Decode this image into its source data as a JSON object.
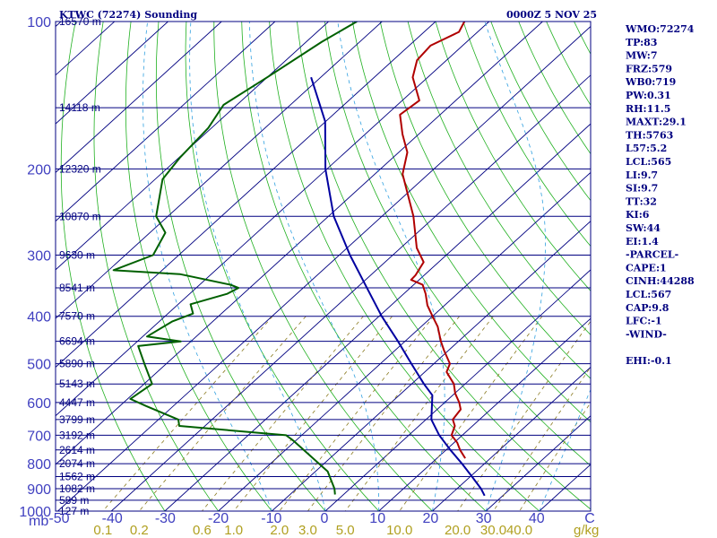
{
  "chart_data": {
    "type": "line",
    "title": "KTWC (72274) Sounding",
    "datetime": "0000Z  5 NOV 25",
    "pressure_unit_label": "mb",
    "mixing_ratio_unit_label": "g/kg",
    "pressure_ticks": [
      "100",
      "200",
      "300",
      "400",
      "500",
      "600",
      "700",
      "800",
      "900",
      "1000"
    ],
    "temperature_ticks": [
      "-50",
      "-40",
      "-30",
      "-20",
      "-10",
      "0",
      "10",
      "20",
      "30",
      "40",
      "C"
    ],
    "mixing_ratio_ticks": [
      "0.1",
      "0.2",
      "0.6",
      "1.0",
      "2.0",
      "3.0",
      "5.0",
      "10.0",
      "20.0",
      "30.0",
      "40.0"
    ],
    "height_levels": [
      {
        "p": 100,
        "label": "16570 m"
      },
      {
        "p": 150,
        "label": "14118 m"
      },
      {
        "p": 200,
        "label": "12320 m"
      },
      {
        "p": 250,
        "label": "10870 m"
      },
      {
        "p": 300,
        "label": "9630 m"
      },
      {
        "p": 350,
        "label": "8541 m"
      },
      {
        "p": 400,
        "label": "7570 m"
      },
      {
        "p": 450,
        "label": "6694 m"
      },
      {
        "p": 500,
        "label": "5890 m"
      },
      {
        "p": 550,
        "label": "5143 m"
      },
      {
        "p": 600,
        "label": "4447 m"
      },
      {
        "p": 650,
        "label": "3799 m"
      },
      {
        "p": 700,
        "label": "3192 m"
      },
      {
        "p": 750,
        "label": "2614 m"
      },
      {
        "p": 800,
        "label": "2074 m"
      },
      {
        "p": 850,
        "label": "1562 m"
      },
      {
        "p": 900,
        "label": "1082 m"
      },
      {
        "p": 950,
        "label": "589 m"
      },
      {
        "p": 1000,
        "label": "127 m"
      }
    ],
    "series": [
      {
        "name": "Temperature",
        "color": "#b00000",
        "points": [
          [
            100,
            -74.6
          ],
          [
            105,
            -73.5
          ],
          [
            112,
            -76.0
          ],
          [
            120,
            -75.5
          ],
          [
            130,
            -72.8
          ],
          [
            145,
            -66.8
          ],
          [
            155,
            -67.5
          ],
          [
            170,
            -63.0
          ],
          [
            185,
            -58.4
          ],
          [
            205,
            -54.8
          ],
          [
            250,
            -44.1
          ],
          [
            290,
            -37.0
          ],
          [
            310,
            -32.8
          ],
          [
            330,
            -31.6
          ],
          [
            337,
            -31.5
          ],
          [
            345,
            -28.3
          ],
          [
            360,
            -25.9
          ],
          [
            380,
            -23.2
          ],
          [
            400,
            -20.0
          ],
          [
            420,
            -16.9
          ],
          [
            450,
            -13.3
          ],
          [
            470,
            -10.8
          ],
          [
            500,
            -7.0
          ],
          [
            520,
            -5.9
          ],
          [
            550,
            -2.1
          ],
          [
            575,
            0.1
          ],
          [
            600,
            2.7
          ],
          [
            620,
            4.4
          ],
          [
            650,
            5.0
          ],
          [
            670,
            6.7
          ],
          [
            700,
            8.0
          ],
          [
            725,
            10.6
          ],
          [
            750,
            12.6
          ],
          [
            780,
            15.3
          ]
        ]
      },
      {
        "name": "Dewpoint",
        "color": "#006000",
        "points": [
          [
            100,
            -94.7
          ],
          [
            110,
            -97.1
          ],
          [
            130,
            -100.0
          ],
          [
            148,
            -102.5
          ],
          [
            165,
            -100.6
          ],
          [
            190,
            -99.8
          ],
          [
            210,
            -98.6
          ],
          [
            250,
            -92.2
          ],
          [
            270,
            -87.1
          ],
          [
            300,
            -84.8
          ],
          [
            322,
            -89.1
          ],
          [
            328,
            -75.9
          ],
          [
            345,
            -64.2
          ],
          [
            350,
            -62.1
          ],
          [
            360,
            -63.0
          ],
          [
            378,
            -67.7
          ],
          [
            395,
            -65.3
          ],
          [
            410,
            -67.6
          ],
          [
            440,
            -69.2
          ],
          [
            450,
            -61.9
          ],
          [
            460,
            -68.9
          ],
          [
            500,
            -64.1
          ],
          [
            550,
            -58.5
          ],
          [
            590,
            -59.5
          ],
          [
            610,
            -55.1
          ],
          [
            650,
            -46.3
          ],
          [
            670,
            -44.8
          ],
          [
            700,
            -22.9
          ],
          [
            720,
            -20.2
          ],
          [
            830,
            -7.7
          ],
          [
            900,
            -2.9
          ],
          [
            925,
            -1.6
          ]
        ]
      },
      {
        "name": "Parcel",
        "color": "#0000a0",
        "points": [
          [
            130,
            -91.8
          ],
          [
            160,
            -80.1
          ],
          [
            200,
            -70.3
          ],
          [
            250,
            -59.0
          ],
          [
            300,
            -48.0
          ],
          [
            350,
            -38.1
          ],
          [
            400,
            -29.5
          ],
          [
            450,
            -21.3
          ],
          [
            500,
            -14.2
          ],
          [
            550,
            -7.7
          ],
          [
            580,
            -3.8
          ],
          [
            650,
            1.0
          ],
          [
            700,
            5.7
          ],
          [
            750,
            10.8
          ],
          [
            800,
            15.8
          ],
          [
            850,
            20.3
          ],
          [
            900,
            24.5
          ],
          [
            930,
            26.6
          ]
        ]
      }
    ],
    "indices": [
      "WMO:72274",
      "TP:83",
      "MW:7",
      "FRZ:579",
      "WB0:719",
      "PW:0.31",
      "RH:11.5",
      "MAXT:29.1",
      "TH:5763",
      "L57:5.2",
      "LCL:565",
      "LI:9.7",
      "SI:9.7",
      "TT:32",
      "KI:6",
      "SW:44",
      "EI:1.4",
      "-PARCEL-",
      "CAPE:1",
      "CINH:44288",
      "LCL:567",
      "CAP:9.8",
      "LFC:-1",
      "-WIND-",
      "",
      "EHI:-0.1"
    ]
  }
}
